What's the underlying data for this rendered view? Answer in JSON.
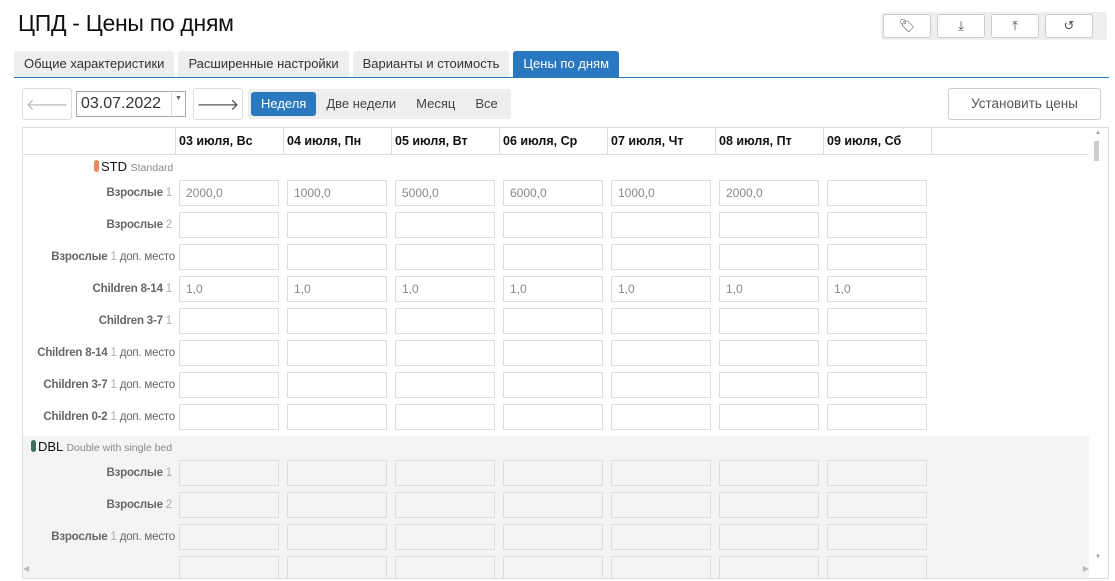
{
  "page_title": "ЦПД - Цены по дням",
  "toolbar_icons": [
    "tag-icon",
    "download-icon",
    "upload-icon",
    "history-icon"
  ],
  "tabs": [
    {
      "label": "Общие характеристики"
    },
    {
      "label": "Расширенные настройки"
    },
    {
      "label": "Варианты и стоимость"
    },
    {
      "label": "Цены по дням",
      "active": true
    }
  ],
  "date": "03.07.2022",
  "periods": [
    {
      "label": "Неделя",
      "active": true
    },
    {
      "label": "Две недели"
    },
    {
      "label": "Месяц"
    },
    {
      "label": "Все"
    }
  ],
  "set_prices_label": "Установить цены",
  "days": [
    "03 июля, Вс",
    "04 июля, Пн",
    "05 июля, Вт",
    "06 июля, Ср",
    "07 июля, Чт",
    "08 июля, Пт",
    "09 июля, Сб"
  ],
  "accent": "#2a78c0",
  "rooms": [
    {
      "code": "STD",
      "name": "Standard",
      "color": "#e8895e",
      "rows": [
        {
          "label": "Взрослые",
          "count": "1",
          "extra": "",
          "values": [
            "2000,0",
            "1000,0",
            "5000,0",
            "6000,0",
            "1000,0",
            "2000,0",
            ""
          ]
        },
        {
          "label": "Взрослые",
          "count": "2",
          "extra": "",
          "values": [
            "",
            "",
            "",
            "",
            "",
            "",
            ""
          ]
        },
        {
          "label": "Взрослые",
          "count": "1",
          "extra": "доп. место",
          "values": [
            "",
            "",
            "",
            "",
            "",
            "",
            ""
          ]
        },
        {
          "label": "Children 8-14",
          "count": "1",
          "extra": "",
          "values": [
            "1,0",
            "1,0",
            "1,0",
            "1,0",
            "1,0",
            "1,0",
            "1,0"
          ]
        },
        {
          "label": "Children 3-7",
          "count": "1",
          "extra": "",
          "values": [
            "",
            "",
            "",
            "",
            "",
            "",
            ""
          ]
        },
        {
          "label": "Children 8-14",
          "count": "1",
          "extra": "доп. место",
          "values": [
            "",
            "",
            "",
            "",
            "",
            "",
            ""
          ]
        },
        {
          "label": "Children 3-7",
          "count": "1",
          "extra": "доп. место",
          "values": [
            "",
            "",
            "",
            "",
            "",
            "",
            ""
          ]
        },
        {
          "label": "Children 0-2",
          "count": "1",
          "extra": "доп. место",
          "values": [
            "",
            "",
            "",
            "",
            "",
            "",
            ""
          ]
        }
      ]
    },
    {
      "code": "DBL",
      "name": "Double with single bed",
      "color": "#3e6e60",
      "rows": [
        {
          "label": "Взрослые",
          "count": "1",
          "extra": "",
          "values": [
            "",
            "",
            "",
            "",
            "",
            "",
            ""
          ]
        },
        {
          "label": "Взрослые",
          "count": "2",
          "extra": "",
          "values": [
            "",
            "",
            "",
            "",
            "",
            "",
            ""
          ]
        },
        {
          "label": "Взрослые",
          "count": "1",
          "extra": "доп. место",
          "values": [
            "",
            "",
            "",
            "",
            "",
            "",
            ""
          ]
        },
        {
          "label": "",
          "count": "",
          "extra": "",
          "values": [
            "",
            "",
            "",
            "",
            "",
            "",
            ""
          ]
        }
      ]
    }
  ]
}
